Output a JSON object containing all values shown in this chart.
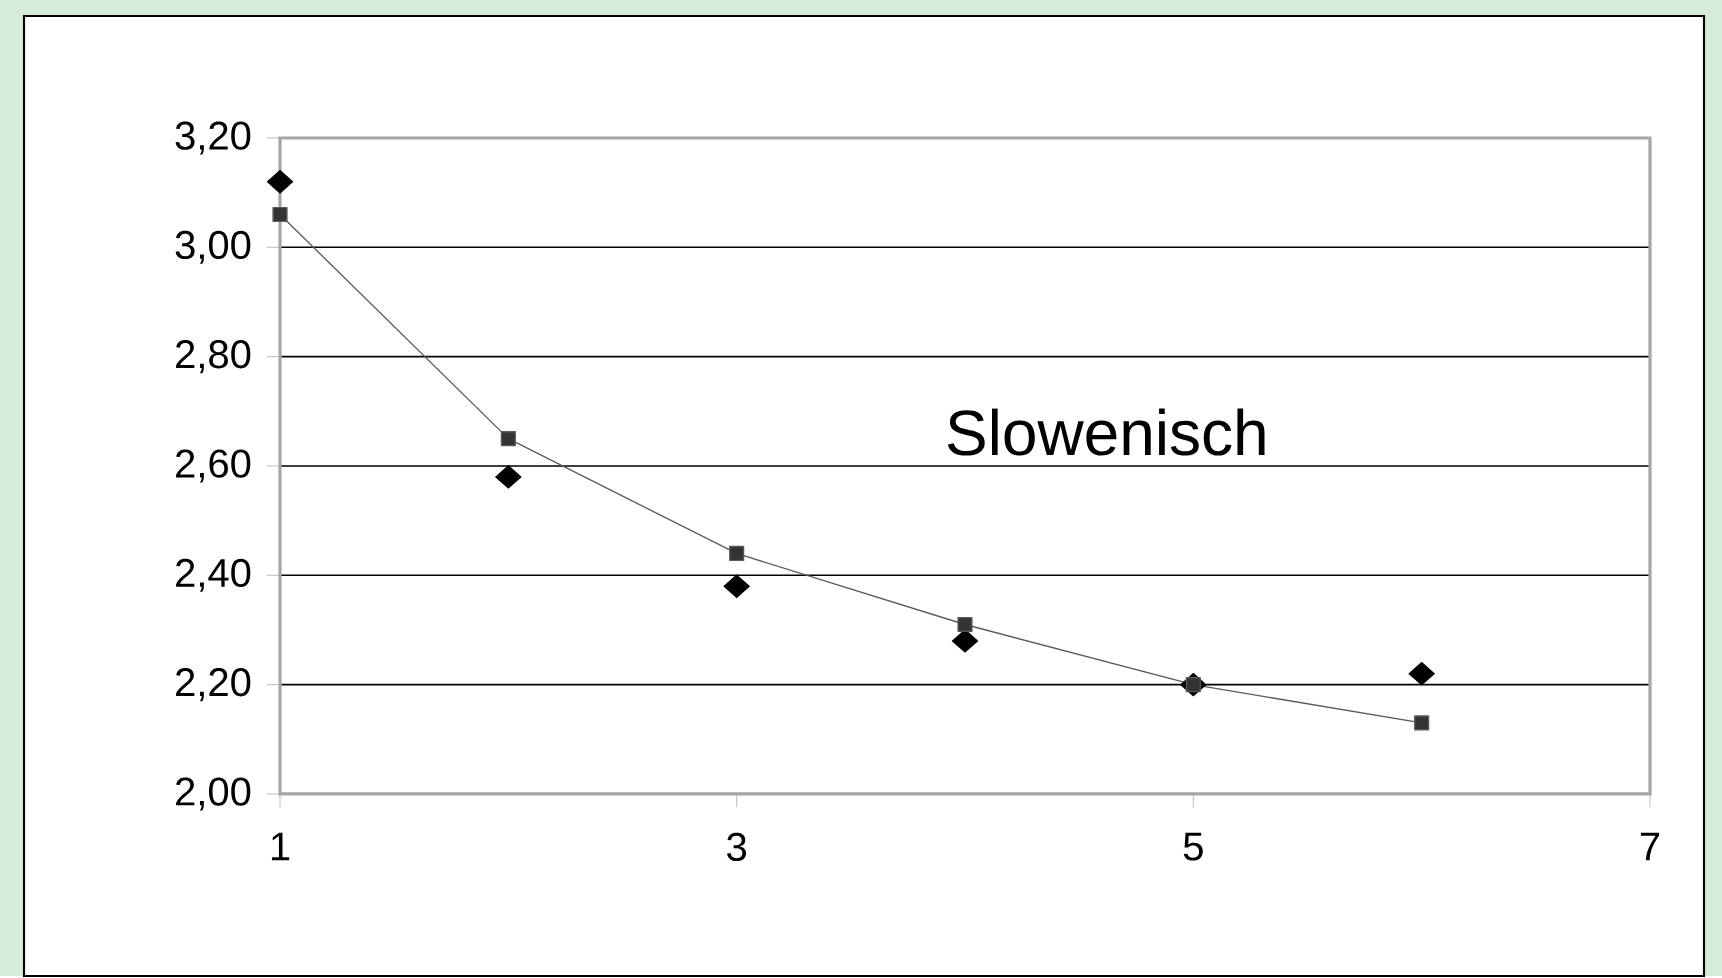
{
  "chart_data": {
    "type": "scatter",
    "x": [
      1,
      2,
      3,
      4,
      5,
      6
    ],
    "series": [
      {
        "color": "#000000",
        "marker": "diamond",
        "values": [
          3.12,
          2.58,
          2.38,
          2.28,
          2.2,
          2.22
        ]
      },
      {
        "type": "line",
        "color": "#333333",
        "marker": "square",
        "values": [
          3.06,
          2.65,
          2.44,
          2.31,
          2.2,
          2.13
        ]
      }
    ],
    "xlim": [
      1,
      7
    ],
    "xticks": [
      1,
      3,
      5,
      7
    ],
    "ylim": [
      2.0,
      3.2
    ],
    "yticks": [
      {
        "value": 2.0,
        "label": "2,00"
      },
      {
        "value": 2.2,
        "label": "2,20"
      },
      {
        "value": 2.4,
        "label": "2,40"
      },
      {
        "value": 2.6,
        "label": "2,60"
      },
      {
        "value": 2.8,
        "label": "2,80"
      },
      {
        "value": 3.0,
        "label": "3,00"
      },
      {
        "value": 3.2,
        "label": "3,20"
      }
    ],
    "grid": "y",
    "annotations": [
      "Slowenisch"
    ]
  }
}
